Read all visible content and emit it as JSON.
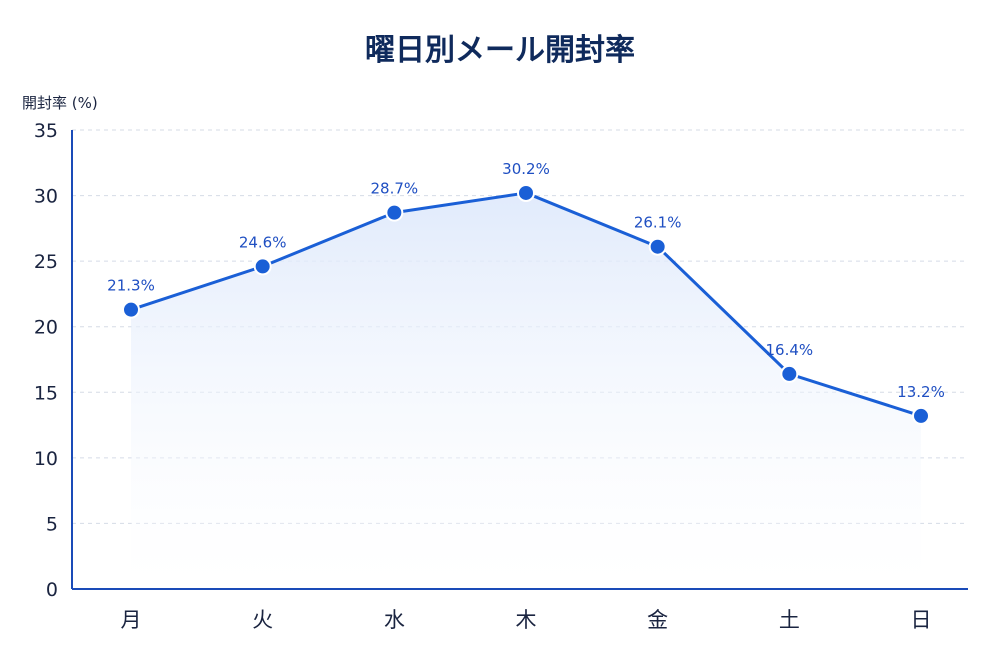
{
  "chart_data": {
    "type": "line",
    "title": "曜日別メール開封率",
    "ylabel": "開封率 (%)",
    "xlabel": "",
    "categories": [
      "月",
      "火",
      "水",
      "木",
      "金",
      "土",
      "日"
    ],
    "series": [
      {
        "values": [
          21.3,
          24.6,
          28.7,
          30.2,
          26.1,
          16.4,
          13.2
        ],
        "labels": [
          "21.3%",
          "24.6%",
          "28.7%",
          "30.2%",
          "26.1%",
          "16.4%",
          "13.2%"
        ]
      }
    ],
    "ylim": [
      0,
      35
    ],
    "yticks": [
      "0",
      "5",
      "10",
      "15",
      "20",
      "25",
      "30",
      "35"
    ],
    "grid": true,
    "colors": {
      "line": "#1a5fd6",
      "marker": "#1a5fd6",
      "axis": "#1a4bb8",
      "grid": "#d5dbe6",
      "fill_top": "#dde8fb",
      "title": "#0f2a5c"
    }
  }
}
